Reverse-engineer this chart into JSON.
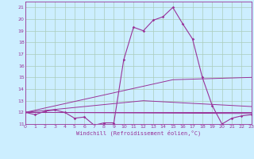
{
  "title": "",
  "xlabel": "Windchill (Refroidissement éolien,°C)",
  "bg_color": "#cceeff",
  "grid_color": "#aaccbb",
  "line_color": "#993399",
  "xmin": 0,
  "xmax": 23,
  "ymin": 11,
  "ymax": 21.5,
  "yticks": [
    11,
    12,
    13,
    14,
    15,
    16,
    17,
    18,
    19,
    20,
    21
  ],
  "xticks": [
    0,
    1,
    2,
    3,
    4,
    5,
    6,
    7,
    8,
    9,
    10,
    11,
    12,
    13,
    14,
    15,
    16,
    17,
    18,
    19,
    20,
    21,
    22,
    23
  ],
  "main_series": {
    "x": [
      0,
      1,
      2,
      3,
      4,
      5,
      6,
      7,
      8,
      9,
      10,
      11,
      12,
      13,
      14,
      15,
      16,
      17,
      18,
      19,
      20,
      21,
      22,
      23
    ],
    "y": [
      12.0,
      11.8,
      12.1,
      12.2,
      12.0,
      11.5,
      11.6,
      10.9,
      11.1,
      11.1,
      16.5,
      19.3,
      19.0,
      19.9,
      20.2,
      21.0,
      19.6,
      18.3,
      15.0,
      12.6,
      11.0,
      11.5,
      11.7,
      11.8
    ]
  },
  "trend_lines": [
    {
      "x": [
        0,
        23
      ],
      "y": [
        12.0,
        12.0
      ]
    },
    {
      "x": [
        0,
        23
      ],
      "y": [
        12.0,
        11.9
      ]
    },
    {
      "x": [
        0,
        15,
        23
      ],
      "y": [
        12.0,
        14.8,
        15.0
      ]
    },
    {
      "x": [
        0,
        12,
        23
      ],
      "y": [
        12.0,
        13.0,
        12.5
      ]
    }
  ]
}
